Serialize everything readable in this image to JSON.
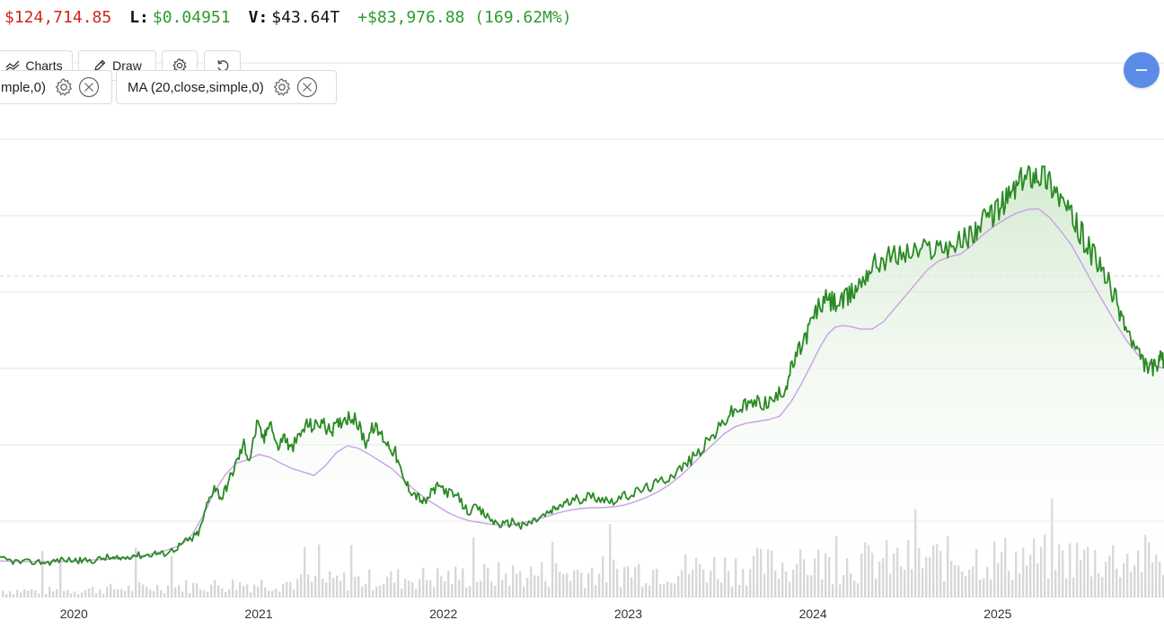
{
  "stats": {
    "high_value": "$124,714.85",
    "low_label": "L:",
    "low_value": "$0.04951",
    "volume_label": "V:",
    "volume_value": "$43.64T",
    "change": "+$83,976.88 (169.62M%)"
  },
  "toolbar": {
    "charts_label": "Charts",
    "draw_label": "Draw",
    "settings_icon": "gear-icon",
    "reset_icon": "reset-icon"
  },
  "indicators": [
    {
      "label": "mple,0)"
    },
    {
      "label": "MA (20,close,simple,0)"
    }
  ],
  "colors": {
    "price_line": "#2a8a24",
    "ma_line": "#c7a1e6",
    "area_fill": "#dff0dc",
    "volume_bar": "#d6d6d6",
    "grid": "#e6e6e6",
    "accent_button": "#5b8de8"
  },
  "chart_data": {
    "type": "line",
    "x_ticks": [
      "2020",
      "2021",
      "2022",
      "2023",
      "2024",
      "2025"
    ],
    "x_range": [
      2019.6,
      2025.9
    ],
    "grid": true,
    "y_axis_labels_visible": false,
    "series": [
      {
        "role": "price",
        "points": [
          [
            2019.6,
            0.08
          ],
          [
            2019.66,
            0.06
          ],
          [
            2019.72,
            0.04
          ],
          [
            2019.8,
            0.05
          ],
          [
            2019.86,
            0.04
          ],
          [
            2019.92,
            0.07
          ],
          [
            2020.0,
            0.07
          ],
          [
            2020.05,
            0.06
          ],
          [
            2020.12,
            0.07
          ],
          [
            2020.18,
            0.1
          ],
          [
            2020.22,
            0.08
          ],
          [
            2020.26,
            0.09
          ],
          [
            2020.32,
            0.13
          ],
          [
            2020.38,
            0.12
          ],
          [
            2020.44,
            0.15
          ],
          [
            2020.48,
            0.14
          ],
          [
            2020.54,
            0.19
          ],
          [
            2020.6,
            0.28
          ],
          [
            2020.64,
            0.31
          ],
          [
            2020.68,
            0.4
          ],
          [
            2020.72,
            0.7
          ],
          [
            2020.76,
            0.92
          ],
          [
            2020.8,
            0.78
          ],
          [
            2020.84,
            0.98
          ],
          [
            2020.88,
            1.19
          ],
          [
            2020.92,
            1.4
          ],
          [
            2020.95,
            1.22
          ],
          [
            2020.99,
            1.62
          ],
          [
            2021.03,
            1.45
          ],
          [
            2021.06,
            1.7
          ],
          [
            2021.1,
            1.35
          ],
          [
            2021.14,
            1.5
          ],
          [
            2021.17,
            1.33
          ],
          [
            2021.22,
            1.48
          ],
          [
            2021.26,
            1.63
          ],
          [
            2021.3,
            1.6
          ],
          [
            2021.34,
            1.66
          ],
          [
            2021.38,
            1.55
          ],
          [
            2021.42,
            1.6
          ],
          [
            2021.46,
            1.7
          ],
          [
            2021.5,
            1.72
          ],
          [
            2021.54,
            1.62
          ],
          [
            2021.58,
            1.42
          ],
          [
            2021.62,
            1.6
          ],
          [
            2021.66,
            1.52
          ],
          [
            2021.7,
            1.4
          ],
          [
            2021.74,
            1.3
          ],
          [
            2021.78,
            1.0
          ],
          [
            2021.82,
            0.88
          ],
          [
            2021.86,
            0.8
          ],
          [
            2021.9,
            0.72
          ],
          [
            2021.94,
            0.86
          ],
          [
            2021.98,
            0.92
          ],
          [
            2022.03,
            0.84
          ],
          [
            2022.08,
            0.78
          ],
          [
            2022.13,
            0.63
          ],
          [
            2022.18,
            0.66
          ],
          [
            2022.23,
            0.58
          ],
          [
            2022.28,
            0.5
          ],
          [
            2022.33,
            0.47
          ],
          [
            2022.38,
            0.52
          ],
          [
            2022.42,
            0.45
          ],
          [
            2022.47,
            0.5
          ],
          [
            2022.52,
            0.55
          ],
          [
            2022.58,
            0.62
          ],
          [
            2022.62,
            0.68
          ],
          [
            2022.66,
            0.72
          ],
          [
            2022.72,
            0.76
          ],
          [
            2022.78,
            0.8
          ],
          [
            2022.84,
            0.79
          ],
          [
            2022.9,
            0.75
          ],
          [
            2022.96,
            0.78
          ],
          [
            2023.02,
            0.83
          ],
          [
            2023.08,
            0.88
          ],
          [
            2023.14,
            0.93
          ],
          [
            2023.2,
            1.0
          ],
          [
            2023.26,
            1.08
          ],
          [
            2023.32,
            1.18
          ],
          [
            2023.38,
            1.3
          ],
          [
            2023.44,
            1.45
          ],
          [
            2023.5,
            1.6
          ],
          [
            2023.55,
            1.75
          ],
          [
            2023.6,
            1.8
          ],
          [
            2023.65,
            1.85
          ],
          [
            2023.7,
            1.88
          ],
          [
            2023.75,
            1.87
          ],
          [
            2023.8,
            1.92
          ],
          [
            2023.85,
            2.05
          ],
          [
            2023.88,
            2.25
          ],
          [
            2023.92,
            2.45
          ],
          [
            2023.96,
            2.63
          ],
          [
            2024.0,
            2.84
          ],
          [
            2024.03,
            2.97
          ],
          [
            2024.07,
            3.05
          ],
          [
            2024.11,
            3.03
          ],
          [
            2024.15,
            3.02
          ],
          [
            2024.19,
            3.08
          ],
          [
            2024.23,
            3.18
          ],
          [
            2024.27,
            3.3
          ],
          [
            2024.31,
            3.42
          ],
          [
            2024.36,
            3.5
          ],
          [
            2024.42,
            3.55
          ],
          [
            2024.48,
            3.58
          ],
          [
            2024.54,
            3.6
          ],
          [
            2024.6,
            3.63
          ],
          [
            2024.66,
            3.66
          ],
          [
            2024.72,
            3.68
          ],
          [
            2024.78,
            3.7
          ],
          [
            2024.84,
            3.78
          ],
          [
            2024.88,
            3.86
          ],
          [
            2024.92,
            3.94
          ],
          [
            2024.96,
            4.02
          ],
          [
            2025.0,
            4.1
          ],
          [
            2025.04,
            4.18
          ],
          [
            2025.08,
            4.3
          ],
          [
            2025.12,
            4.4
          ],
          [
            2025.16,
            4.48
          ],
          [
            2025.2,
            4.52
          ],
          [
            2025.24,
            4.5
          ],
          [
            2025.28,
            4.42
          ],
          [
            2025.32,
            4.3
          ],
          [
            2025.36,
            4.15
          ],
          [
            2025.4,
            4.0
          ],
          [
            2025.44,
            3.85
          ],
          [
            2025.48,
            3.7
          ],
          [
            2025.52,
            3.55
          ],
          [
            2025.56,
            3.4
          ],
          [
            2025.6,
            3.24
          ],
          [
            2025.64,
            3.05
          ],
          [
            2025.68,
            2.82
          ],
          [
            2025.72,
            2.6
          ],
          [
            2025.76,
            2.42
          ],
          [
            2025.8,
            2.3
          ],
          [
            2025.84,
            2.28
          ],
          [
            2025.86,
            2.26
          ],
          [
            2025.88,
            2.36
          ],
          [
            2025.9,
            2.38
          ]
        ]
      },
      {
        "name": "MA (20,close,simple,0)",
        "role": "moving_average",
        "points": [
          [
            2019.6,
            0.06
          ],
          [
            2019.7,
            0.05
          ],
          [
            2019.8,
            0.05
          ],
          [
            2019.9,
            0.05
          ],
          [
            2020.0,
            0.06
          ],
          [
            2020.1,
            0.07
          ],
          [
            2020.2,
            0.08
          ],
          [
            2020.3,
            0.1
          ],
          [
            2020.4,
            0.13
          ],
          [
            2020.5,
            0.18
          ],
          [
            2020.58,
            0.24
          ],
          [
            2020.64,
            0.36
          ],
          [
            2020.7,
            0.58
          ],
          [
            2020.76,
            0.85
          ],
          [
            2020.82,
            1.05
          ],
          [
            2020.88,
            1.18
          ],
          [
            2020.94,
            1.22
          ],
          [
            2021.0,
            1.28
          ],
          [
            2021.06,
            1.25
          ],
          [
            2021.12,
            1.18
          ],
          [
            2021.18,
            1.12
          ],
          [
            2021.24,
            1.08
          ],
          [
            2021.3,
            1.04
          ],
          [
            2021.36,
            1.15
          ],
          [
            2021.42,
            1.3
          ],
          [
            2021.48,
            1.38
          ],
          [
            2021.54,
            1.35
          ],
          [
            2021.6,
            1.28
          ],
          [
            2021.66,
            1.2
          ],
          [
            2021.72,
            1.12
          ],
          [
            2021.78,
            1.0
          ],
          [
            2021.84,
            0.88
          ],
          [
            2021.9,
            0.78
          ],
          [
            2021.96,
            0.7
          ],
          [
            2022.02,
            0.62
          ],
          [
            2022.08,
            0.56
          ],
          [
            2022.14,
            0.52
          ],
          [
            2022.2,
            0.5
          ],
          [
            2022.26,
            0.48
          ],
          [
            2022.32,
            0.47
          ],
          [
            2022.38,
            0.48
          ],
          [
            2022.44,
            0.5
          ],
          [
            2022.5,
            0.53
          ],
          [
            2022.56,
            0.57
          ],
          [
            2022.62,
            0.61
          ],
          [
            2022.68,
            0.64
          ],
          [
            2022.74,
            0.66
          ],
          [
            2022.8,
            0.67
          ],
          [
            2022.86,
            0.67
          ],
          [
            2022.92,
            0.68
          ],
          [
            2022.98,
            0.7
          ],
          [
            2023.04,
            0.74
          ],
          [
            2023.1,
            0.79
          ],
          [
            2023.16,
            0.85
          ],
          [
            2023.22,
            0.93
          ],
          [
            2023.28,
            1.03
          ],
          [
            2023.34,
            1.15
          ],
          [
            2023.4,
            1.28
          ],
          [
            2023.46,
            1.4
          ],
          [
            2023.52,
            1.52
          ],
          [
            2023.58,
            1.6
          ],
          [
            2023.64,
            1.64
          ],
          [
            2023.7,
            1.66
          ],
          [
            2023.76,
            1.68
          ],
          [
            2023.82,
            1.72
          ],
          [
            2023.88,
            1.88
          ],
          [
            2023.94,
            2.1
          ],
          [
            2024.0,
            2.35
          ],
          [
            2024.04,
            2.52
          ],
          [
            2024.08,
            2.66
          ],
          [
            2024.12,
            2.74
          ],
          [
            2024.16,
            2.76
          ],
          [
            2024.2,
            2.75
          ],
          [
            2024.26,
            2.72
          ],
          [
            2024.32,
            2.72
          ],
          [
            2024.38,
            2.8
          ],
          [
            2024.44,
            2.95
          ],
          [
            2024.5,
            3.1
          ],
          [
            2024.56,
            3.25
          ],
          [
            2024.62,
            3.4
          ],
          [
            2024.68,
            3.5
          ],
          [
            2024.74,
            3.55
          ],
          [
            2024.8,
            3.58
          ],
          [
            2024.86,
            3.68
          ],
          [
            2024.92,
            3.8
          ],
          [
            2024.98,
            3.9
          ],
          [
            2025.04,
            3.98
          ],
          [
            2025.1,
            4.05
          ],
          [
            2025.16,
            4.09
          ],
          [
            2025.22,
            4.1
          ],
          [
            2025.28,
            4.0
          ],
          [
            2025.34,
            3.85
          ],
          [
            2025.4,
            3.68
          ],
          [
            2025.46,
            3.45
          ],
          [
            2025.52,
            3.22
          ],
          [
            2025.58,
            3.0
          ],
          [
            2025.64,
            2.78
          ],
          [
            2025.7,
            2.58
          ],
          [
            2025.76,
            2.42
          ],
          [
            2025.82,
            2.32
          ],
          [
            2025.88,
            2.28
          ],
          [
            2025.9,
            2.27
          ]
        ]
      }
    ]
  }
}
